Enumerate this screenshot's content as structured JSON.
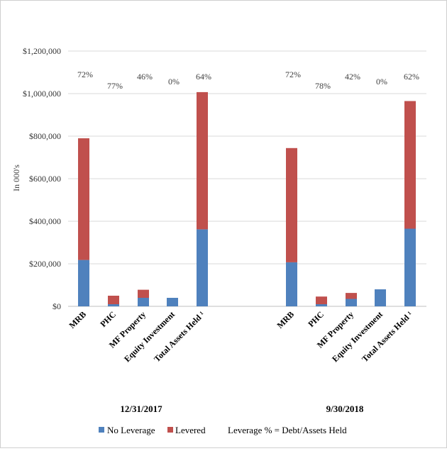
{
  "chart_data": {
    "type": "bar",
    "stacked": true,
    "ylabel": "In 000's",
    "ylim": [
      0,
      1200000
    ],
    "yticks": [
      0,
      200000,
      400000,
      600000,
      800000,
      1000000,
      1200000
    ],
    "ytick_labels": [
      "$0",
      "$200,000",
      "$400,000",
      "$600,000",
      "$800,000",
      "$1,000,000",
      "$1,200,000"
    ],
    "grid": true,
    "colors": {
      "no_leverage": "#4f81bd",
      "levered": "#c0504d"
    },
    "categories": [
      "MRB",
      "PHC",
      "MF Property",
      "Equity Investment",
      "Total Assets Held ¹"
    ],
    "groups": [
      {
        "label": "12/31/2017",
        "series": [
          {
            "name": "No Leverage",
            "values": [
              218000,
              10000,
              40000,
              40000,
              362000
            ]
          },
          {
            "name": "Levered",
            "values": [
              572000,
              40000,
              38000,
              0,
              645000
            ]
          }
        ],
        "leverage_labels": [
          "72%",
          "77%",
          "46%",
          "0%",
          "64%"
        ]
      },
      {
        "label": "9/30/2018",
        "series": [
          {
            "name": "No Leverage",
            "values": [
              207000,
              10000,
              35000,
              80000,
              365000
            ]
          },
          {
            "name": "Levered",
            "values": [
              537000,
              36000,
              28000,
              0,
              600000
            ]
          }
        ],
        "leverage_labels": [
          "72%",
          "78%",
          "42%",
          "0%",
          "62%"
        ]
      }
    ],
    "legend": {
      "placement": "bottom",
      "items": [
        "No Leverage",
        "Levered"
      ],
      "note": "Leverage % = Debt/Assets Held"
    }
  }
}
